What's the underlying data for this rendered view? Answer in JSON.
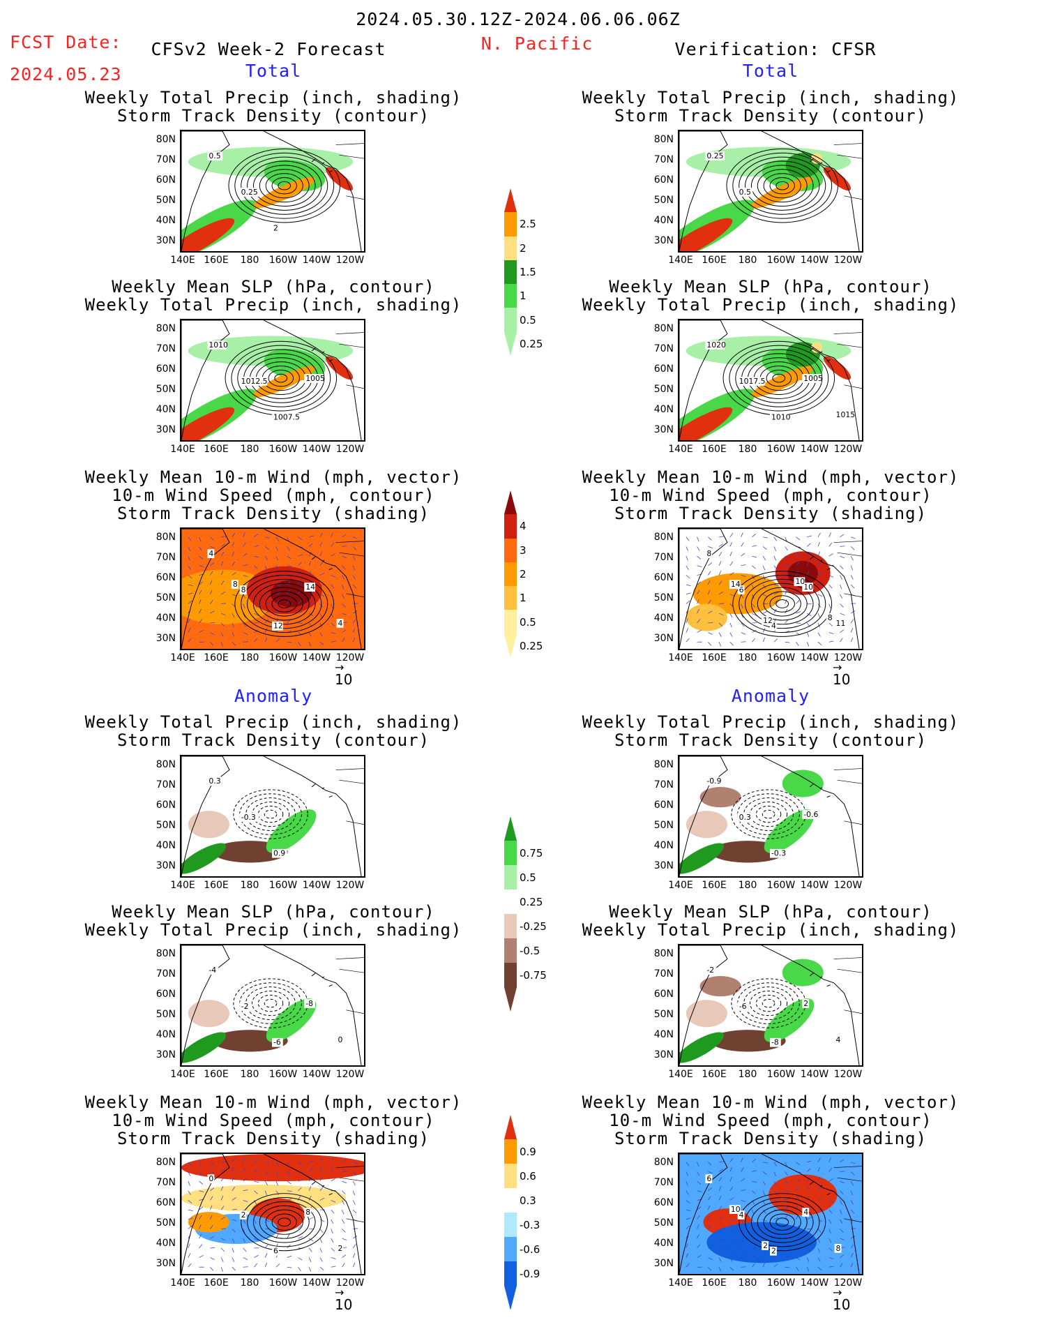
{
  "header": {
    "date_range": "2024.05.30.12Z-2024.06.06.06Z",
    "fcst_label": "FCST Date:",
    "fcst_date": "2024.05.23",
    "region": "N. Pacific",
    "left_title": "CFSv2 Week-2 Forecast",
    "right_title": "Verification: CFSR",
    "total_label": "Total",
    "anomaly_label": "Anomaly"
  },
  "panel_titles": {
    "precip_track": [
      "Weekly Total Precip (inch, shading)",
      "Storm Track Density (contour)"
    ],
    "slp_precip": [
      "Weekly Mean SLP (hPa, contour)",
      "Weekly Total Precip (inch, shading)"
    ],
    "wind_track": [
      "Weekly Mean 10-m Wind (mph, vector)",
      "10-m Wind Speed (mph, contour)",
      "Storm Track Density (shading)"
    ]
  },
  "axes": {
    "lat_labels": [
      "80N",
      "70N",
      "60N",
      "50N",
      "40N",
      "30N"
    ],
    "lon_labels": [
      "140E",
      "160E",
      "180",
      "160W",
      "140W",
      "120W"
    ]
  },
  "vector_ref": "10",
  "colorbars": {
    "precip_total": {
      "labels": [
        "2.5",
        "2",
        "1.5",
        "1",
        "0.5",
        "0.25"
      ],
      "colors": [
        "#e03010",
        "#ff9a00",
        "#ffe080",
        "#1f9a1f",
        "#48d848",
        "#a8f0a8"
      ]
    },
    "track_total": {
      "labels": [
        "4",
        "3",
        "2",
        "1",
        "0.5",
        "0.25"
      ],
      "colors": [
        "#8a0a0a",
        "#d02010",
        "#ff6a10",
        "#ff9a00",
        "#ffc040",
        "#fff0a0"
      ]
    },
    "precip_anom": {
      "labels": [
        "0.75",
        "0.5",
        "0.25",
        "-0.25",
        "-0.5",
        "-0.75"
      ],
      "colors": [
        "#1f9a1f",
        "#48d848",
        "#a8f0a8",
        "#ffffff",
        "#e8c8b8",
        "#b08070",
        "#704030"
      ]
    },
    "track_anom": {
      "labels": [
        "0.9",
        "0.6",
        "0.3",
        "-0.3",
        "-0.6",
        "-0.9"
      ],
      "colors": [
        "#e03010",
        "#ff9a00",
        "#ffe080",
        "#ffffff",
        "#b0e8ff",
        "#50a8ff",
        "#1060e0"
      ]
    }
  },
  "contour_labels": {
    "lt1": [
      "0.5",
      "0.25",
      "2"
    ],
    "rt1": [
      "0.25",
      "0.5"
    ],
    "lt2": [
      "1010",
      "1012.5",
      "1007.5",
      "1005"
    ],
    "rt2": [
      "1020",
      "1017.5",
      "1010",
      "1005",
      "1015"
    ],
    "lt3": [
      "4",
      "8",
      "12",
      "14",
      "4",
      "8"
    ],
    "rt3": [
      "8",
      "6",
      "4",
      "10",
      "11",
      "14",
      "12",
      "10",
      "8"
    ],
    "la1": [
      "0.3",
      "-0.3",
      "0.9"
    ],
    "ra1": [
      "-0.9",
      "0.3",
      "-0.3",
      "-0.6"
    ],
    "la2": [
      "-4",
      "-2",
      "-6",
      "-8",
      "0"
    ],
    "ra2": [
      "-2",
      "-6",
      "-8",
      "2",
      "4"
    ],
    "la3": [
      "0",
      "2",
      "6",
      "8",
      "2"
    ],
    "ra3": [
      "6",
      "4",
      "2",
      "4",
      "8",
      "10",
      "2"
    ]
  }
}
